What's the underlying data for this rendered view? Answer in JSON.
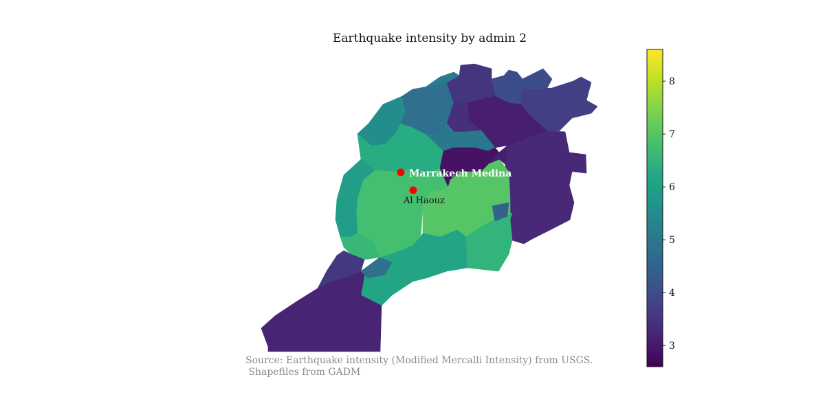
{
  "title": "Earthquake intensity by admin 2",
  "source_lines": [
    "Source: Earthquake intensity (Modified Mercalli Intensity) from USGS.",
    " Shapefiles from GADM"
  ],
  "places": [
    {
      "name": "Marrakech Medina",
      "label_style": "white-bold"
    },
    {
      "name": "Al Haouz",
      "label_style": "dark"
    }
  ],
  "marker_color": "#ff0000",
  "colorbar": {
    "colormap": "viridis",
    "min": 2.6,
    "max": 8.6,
    "ticks": [
      3,
      4,
      5,
      6,
      7,
      8
    ]
  },
  "regions": [
    {
      "id": "r01",
      "intensity": 3.3
    },
    {
      "id": "r02",
      "intensity": 3.7
    },
    {
      "id": "r03",
      "intensity": 4.0
    },
    {
      "id": "r04",
      "intensity": 5.5
    },
    {
      "id": "r05",
      "intensity": 4.8
    },
    {
      "id": "r06",
      "intensity": 3.5
    },
    {
      "id": "r07",
      "intensity": 3.1
    },
    {
      "id": "r08",
      "intensity": 3.4
    },
    {
      "id": "r09",
      "intensity": 5.0
    },
    {
      "id": "r10",
      "intensity": 6.3
    },
    {
      "id": "r11",
      "intensity": 6.8
    },
    {
      "id": "r12",
      "intensity": 2.9
    },
    {
      "id": "r13",
      "intensity": 5.9
    },
    {
      "id": "r14",
      "intensity": 7.0
    },
    {
      "id": "r15",
      "intensity": 6.6
    },
    {
      "id": "r16",
      "intensity": 6.1
    },
    {
      "id": "r17",
      "intensity": 6.5
    },
    {
      "id": "r18",
      "intensity": 4.5
    },
    {
      "id": "r19",
      "intensity": 3.2
    },
    {
      "id": "r20",
      "intensity": 4.8
    },
    {
      "id": "r21",
      "intensity": 3.6
    },
    {
      "id": "r22",
      "intensity": 3.1
    },
    {
      "id": "r23",
      "intensity": 5.1
    }
  ]
}
